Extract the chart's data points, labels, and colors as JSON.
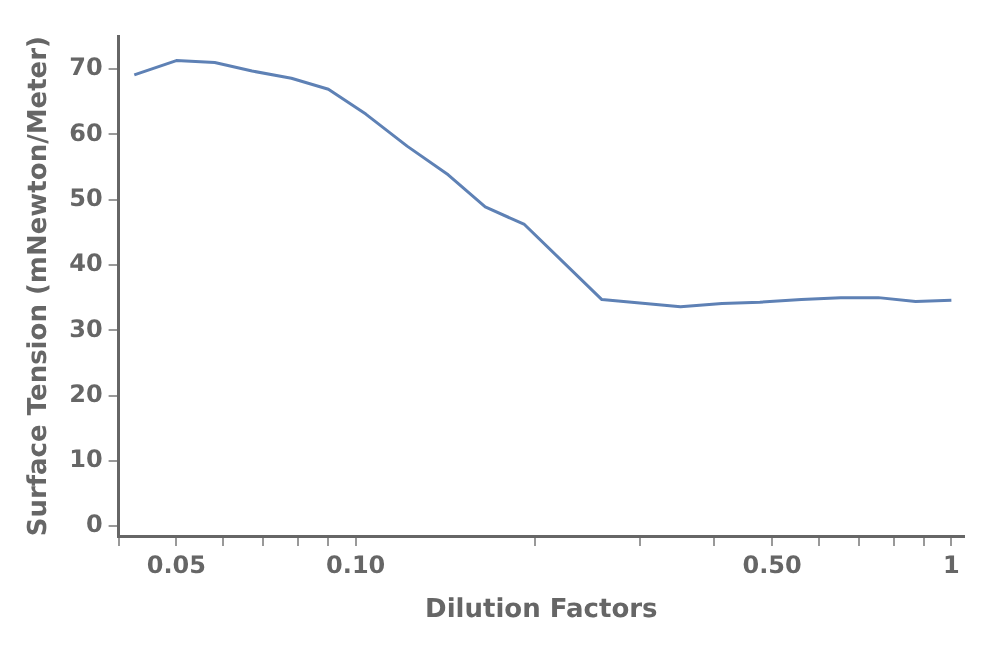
{
  "chart_data": {
    "type": "line",
    "xlabel": "Dilution Factors",
    "ylabel": "Surface Tension (mNewton/Meter)",
    "log": "x",
    "grid": false,
    "legend": false,
    "marker": "none",
    "line_style": "solid",
    "x": [
      0.0425,
      0.05,
      0.058,
      0.067,
      0.078,
      0.09,
      0.104,
      0.122,
      0.143,
      0.165,
      0.192,
      0.259,
      0.351,
      0.412,
      0.477,
      0.56,
      0.652,
      0.754,
      0.871,
      1
    ],
    "series": [
      {
        "color": "#5e81b5",
        "values": [
          69.1,
          71.3,
          71.0,
          69.7,
          68.6,
          66.9,
          63.1,
          58.2,
          53.8,
          48.9,
          46.2,
          34.7,
          33.6,
          34.1,
          34.3,
          34.7,
          35.0,
          35.0,
          34.4,
          34.6
        ]
      }
    ],
    "xlim": [
      0.04,
      1.05
    ],
    "ylim": [
      -1.5,
      75
    ],
    "xticks": [
      {
        "value": 0.04,
        "label": null
      },
      {
        "value": 0.05,
        "label": "0.05"
      },
      {
        "value": 0.06,
        "label": null
      },
      {
        "value": 0.07,
        "label": null
      },
      {
        "value": 0.08,
        "label": null
      },
      {
        "value": 0.09,
        "label": null
      },
      {
        "value": 0.1,
        "label": "0.10"
      },
      {
        "value": 0.2,
        "label": null
      },
      {
        "value": 0.3,
        "label": null
      },
      {
        "value": 0.4,
        "label": null
      },
      {
        "value": 0.5,
        "label": "0.50"
      },
      {
        "value": 0.6,
        "label": null
      },
      {
        "value": 0.7,
        "label": null
      },
      {
        "value": 0.8,
        "label": null
      },
      {
        "value": 0.9,
        "label": null
      },
      {
        "value": 1,
        "label": "1"
      }
    ],
    "yticks": [
      0,
      10,
      20,
      30,
      40,
      50,
      60,
      70
    ]
  }
}
